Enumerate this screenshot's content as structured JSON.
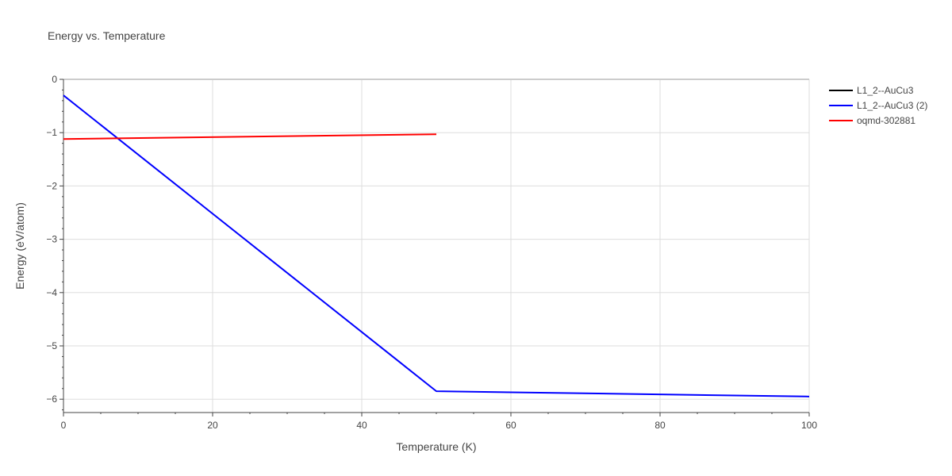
{
  "chart_data": {
    "type": "line",
    "title": "Energy vs. Temperature",
    "xlabel": "Temperature (K)",
    "ylabel": "Energy (eV/atom)",
    "xlim": [
      0,
      100
    ],
    "ylim": [
      -6.25,
      0
    ],
    "x_ticks": [
      0,
      20,
      40,
      60,
      80,
      100
    ],
    "x_tick_labels": [
      "0",
      "20",
      "40",
      "60",
      "80",
      "100"
    ],
    "y_ticks": [
      0,
      -1,
      -2,
      -3,
      -4,
      -5,
      -6
    ],
    "y_tick_labels": [
      "0",
      "−1",
      "−2",
      "−3",
      "−4",
      "−5",
      "−6"
    ],
    "x_minor_step": 5,
    "y_minor_step": 0.2,
    "grid": true,
    "legend_position": "top-right outside plot",
    "series": [
      {
        "name": "L1_2--AuCu3",
        "color": "#000000",
        "x": [],
        "y": []
      },
      {
        "name": "L1_2--AuCu3 (2)",
        "color": "#0000ff",
        "x": [
          0,
          50,
          100
        ],
        "y": [
          -0.3,
          -5.85,
          -5.95
        ]
      },
      {
        "name": "oqmd-302881",
        "color": "#ff0000",
        "x": [
          0,
          50
        ],
        "y": [
          -1.12,
          -1.03
        ]
      }
    ]
  }
}
